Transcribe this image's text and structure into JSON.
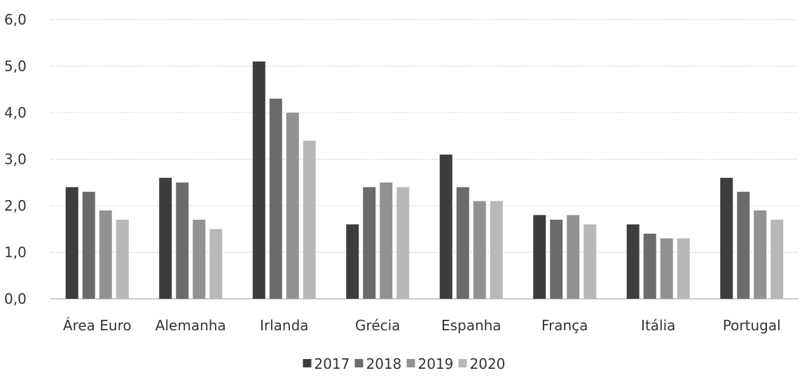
{
  "chart_data": {
    "type": "bar",
    "categories": [
      "Área Euro",
      "Alemanha",
      "Irlanda",
      "Grécia",
      "Espanha",
      "França",
      "Itália",
      "Portugal"
    ],
    "series": [
      {
        "name": "2017",
        "color": "#3d3d3d",
        "values": [
          2.4,
          2.6,
          5.1,
          1.6,
          3.1,
          1.8,
          1.6,
          2.6
        ]
      },
      {
        "name": "2018",
        "color": "#6b6b6b",
        "values": [
          2.3,
          2.5,
          4.3,
          2.4,
          2.4,
          1.7,
          1.4,
          2.3
        ]
      },
      {
        "name": "2019",
        "color": "#929292",
        "values": [
          1.9,
          1.7,
          4.0,
          2.5,
          2.1,
          1.8,
          1.3,
          1.9
        ]
      },
      {
        "name": "2020",
        "color": "#b8b8b8",
        "values": [
          1.7,
          1.5,
          3.4,
          2.4,
          2.1,
          1.6,
          1.3,
          1.7
        ]
      }
    ],
    "ylim": [
      0,
      6
    ],
    "yticks": [
      "0,0",
      "1,0",
      "2,0",
      "3,0",
      "4,0",
      "5,0",
      "6,0"
    ],
    "grid": true,
    "legend_position": "bottom"
  }
}
